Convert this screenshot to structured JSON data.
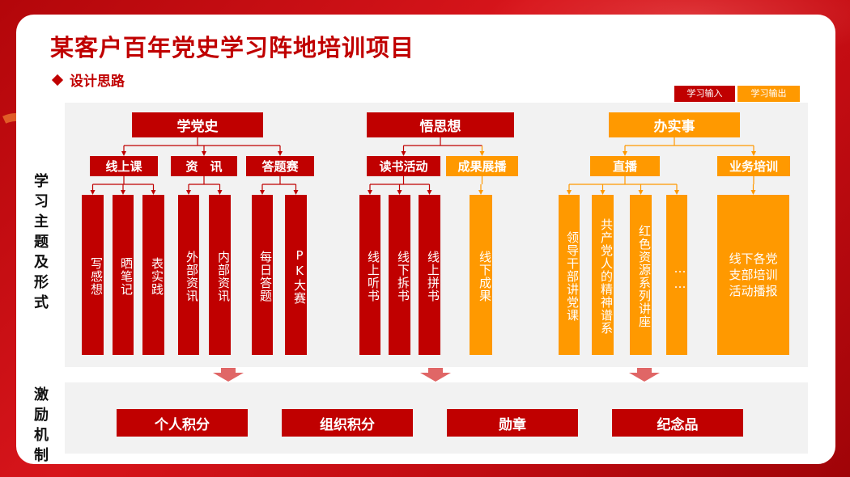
{
  "title": "某客户百年党史学习阵地培训项目",
  "subtitle": "设计思路",
  "legend": {
    "input": "学习输入",
    "output": "学习输出"
  },
  "side_labels": {
    "topics": "学习主题及形式",
    "incentive": "激励机制"
  },
  "colors": {
    "input": "#c00000",
    "output": "#ff9900"
  },
  "columns": [
    {
      "name": "学党史",
      "type": "input",
      "groups": [
        {
          "name": "线上课",
          "type": "input",
          "leaves": [
            "写感想",
            "晒笔记",
            "表实践"
          ]
        },
        {
          "name": "资　讯",
          "type": "input",
          "leaves": [
            "外部资讯",
            "内部资讯"
          ]
        },
        {
          "name": "答题赛",
          "type": "input",
          "leaves": [
            "每日答题",
            "PK大赛"
          ]
        }
      ]
    },
    {
      "name": "悟思想",
      "type": "input",
      "groups": [
        {
          "name": "读书活动",
          "type": "input",
          "leaves": [
            "线上听书",
            "线下拆书",
            "线上拼书"
          ]
        },
        {
          "name": "成果展播",
          "type": "output",
          "leaves": [
            "线下成果"
          ]
        }
      ]
    },
    {
      "name": "办实事",
      "type": "output",
      "groups": [
        {
          "name": "直播",
          "type": "output",
          "leaves": [
            "领导干部讲党课",
            "共产党人的精神谱系",
            "红色资源系列讲座",
            "……"
          ]
        },
        {
          "name": "业务培训",
          "type": "output",
          "leaves": [
            "线下各党支部培训活动播报"
          ]
        }
      ]
    }
  ],
  "rewards": [
    "个人积分",
    "组织积分",
    "勋章",
    "纪念品"
  ]
}
